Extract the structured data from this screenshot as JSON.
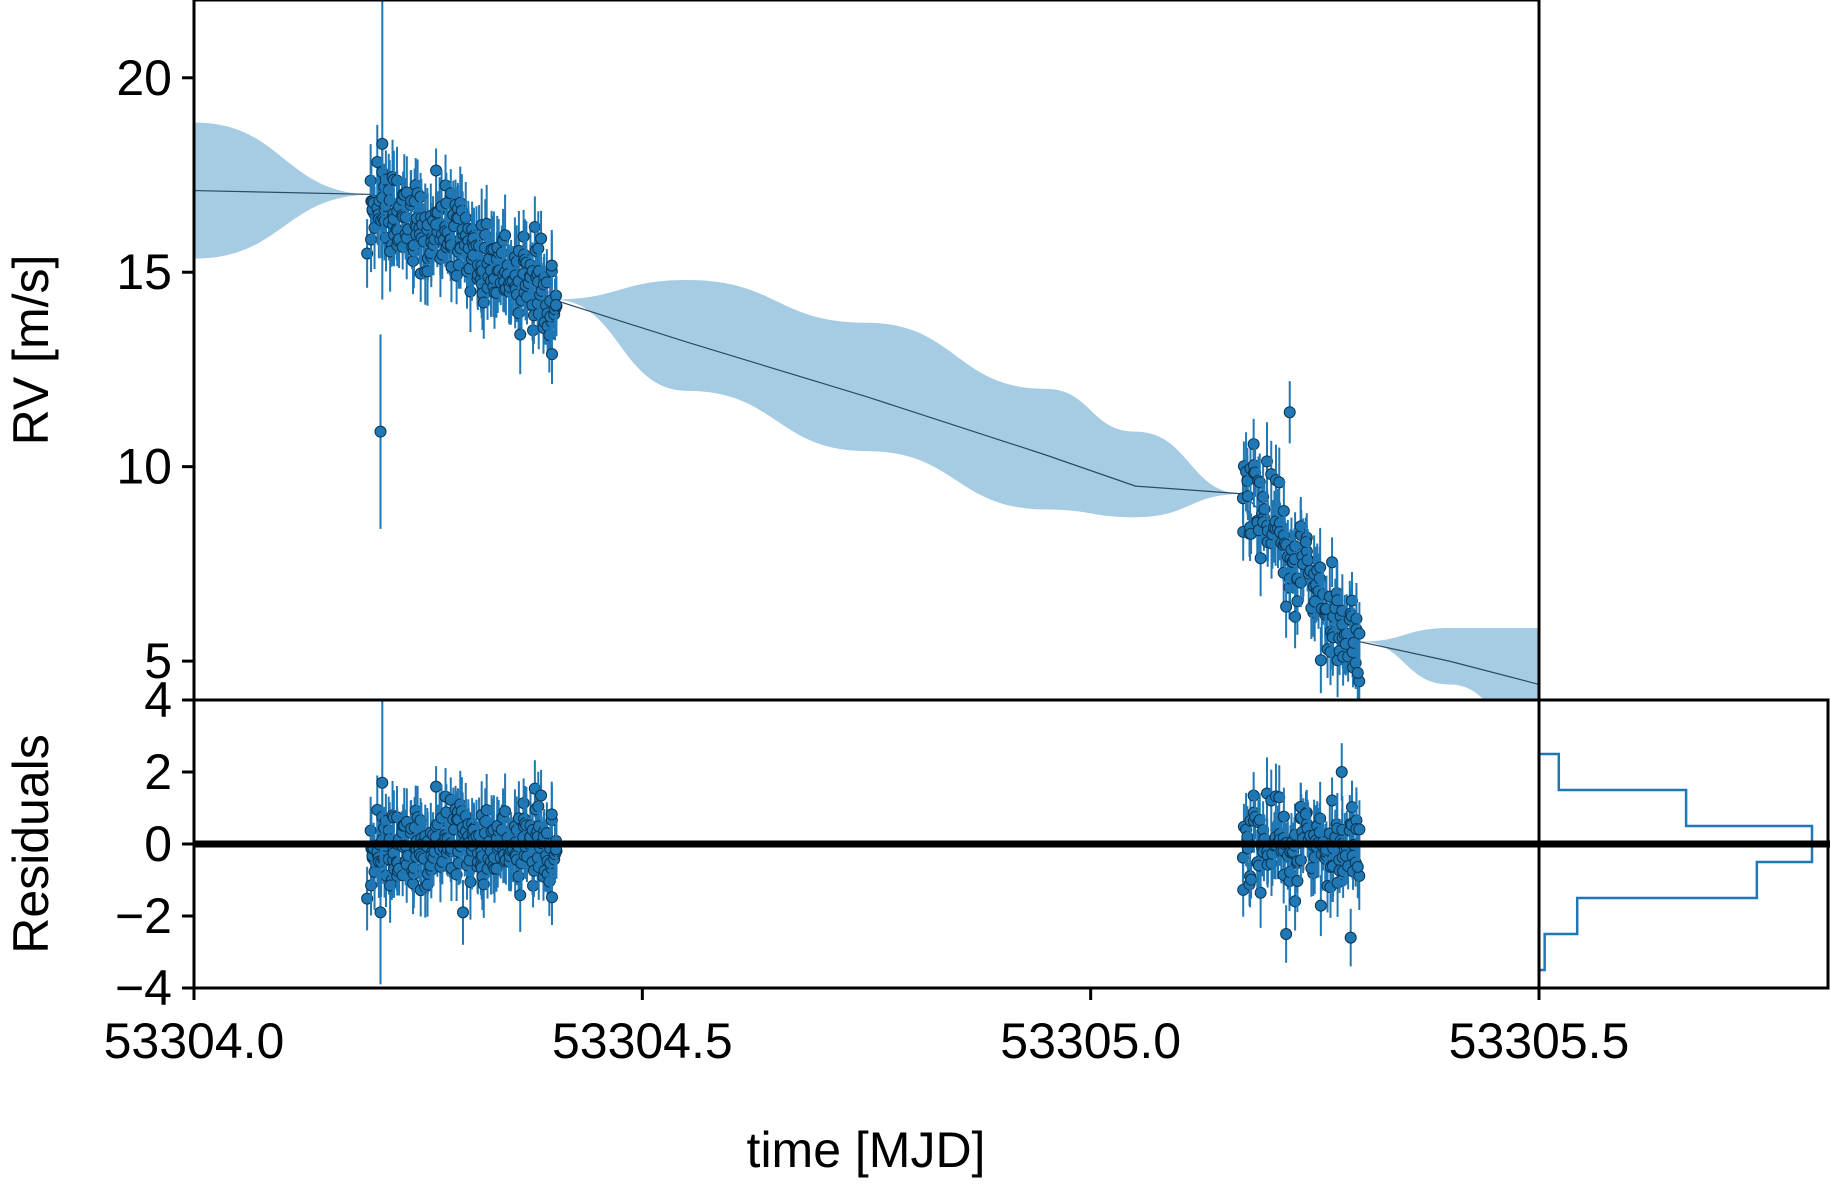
{
  "colors": {
    "points": "#1f77b4",
    "points_edge": "#0b3552",
    "band": "#a6cce3",
    "model_line": "#2a4a66",
    "zero_line": "#000000",
    "hist": "#1f77b4"
  },
  "chart_data": [
    {
      "panel": "rv",
      "type": "scatter",
      "ylabel": "RV [m/s]",
      "xlim": [
        53304.0,
        53305.5
      ],
      "ylim": [
        4,
        22
      ],
      "yticks": [
        5,
        10,
        15,
        20
      ],
      "ytick_labels": [
        "5",
        "10",
        "15",
        "20"
      ],
      "series": [
        {
          "kind": "model_band",
          "x": [
            53304.0,
            53304.2,
            53304.25,
            53304.3,
            53304.35,
            53304.4,
            53304.55,
            53304.75,
            53304.95,
            53305.05,
            53305.17,
            53305.2,
            53305.24,
            53305.27,
            53305.3,
            53305.4,
            53305.5
          ],
          "y": [
            17.1,
            17.0,
            16.5,
            15.8,
            15.0,
            14.3,
            13.2,
            11.8,
            10.3,
            9.5,
            9.3,
            8.6,
            7.4,
            6.5,
            5.5,
            5.0,
            4.4
          ],
          "lower": [
            15.35,
            17.0,
            16.5,
            15.8,
            15.0,
            14.3,
            11.95,
            10.4,
            8.9,
            8.7,
            9.3,
            8.6,
            7.4,
            6.5,
            5.5,
            4.4,
            3.0
          ],
          "upper": [
            18.85,
            17.0,
            16.5,
            15.8,
            15.0,
            14.3,
            14.8,
            13.7,
            12.0,
            10.9,
            9.3,
            8.6,
            7.4,
            6.5,
            5.5,
            5.85,
            5.85
          ]
        },
        {
          "kind": "points",
          "groups": [
            {
              "x_range": [
                53304.195,
                53304.405
              ],
              "y_start": 17.0,
              "y_end": 14.3,
              "scatter": 0.55,
              "yerr": 0.9,
              "n": 260
            },
            {
              "x_range": [
                53305.17,
                53305.3
              ],
              "y_start": 9.6,
              "y_end": 5.3,
              "scatter": 0.55,
              "yerr": 0.85,
              "n": 130
            }
          ],
          "outliers": [
            {
              "x": 53304.208,
              "y": 10.9,
              "yerr": 2.5
            },
            {
              "x": 53304.21,
              "y": 18.3,
              "yerr": 4.0
            },
            {
              "x": 53305.222,
              "y": 11.4,
              "yerr": 0.8
            },
            {
              "x": 53305.218,
              "y": 6.4,
              "yerr": 0.8
            }
          ]
        }
      ]
    },
    {
      "panel": "residuals",
      "type": "scatter",
      "ylabel": "Residuals",
      "xlabel": "time [MJD]",
      "xlim": [
        53304.0,
        53305.5
      ],
      "ylim": [
        -4,
        4
      ],
      "xticks": [
        53304.0,
        53304.5,
        53305.0,
        53305.5
      ],
      "xtick_labels": [
        "53304.0",
        "53304.5",
        "53305.0",
        "53305.5"
      ],
      "yticks": [
        -4,
        -2,
        0,
        2,
        4
      ],
      "ytick_labels": [
        "−4",
        "−2",
        "0",
        "2",
        "4"
      ],
      "zero_line": 0,
      "groups": [
        {
          "x_range": [
            53304.195,
            53304.405
          ],
          "scatter": 0.55,
          "yerr": 0.9,
          "n": 260
        },
        {
          "x_range": [
            53305.17,
            53305.3
          ],
          "scatter": 0.55,
          "yerr": 0.85,
          "n": 130
        }
      ],
      "outliers": [
        {
          "x": 53304.208,
          "y": -1.9,
          "yerr": 2.0
        },
        {
          "x": 53304.21,
          "y": 1.7,
          "yerr": 2.3
        },
        {
          "x": 53305.218,
          "y": -2.5,
          "yerr": 0.8
        },
        {
          "x": 53305.29,
          "y": -2.6,
          "yerr": 0.8
        },
        {
          "x": 53305.28,
          "y": 2.0,
          "yerr": 0.8
        },
        {
          "x": 53304.3,
          "y": -1.9,
          "yerr": 0.9
        }
      ]
    },
    {
      "panel": "residual_histogram",
      "type": "bar",
      "orientation": "horizontal",
      "bins": [
        -3.5,
        -2.5,
        -1.5,
        -0.5,
        0.5,
        1.5,
        2.5
      ],
      "counts": [
        4,
        27,
        154,
        193,
        104,
        14
      ]
    }
  ]
}
